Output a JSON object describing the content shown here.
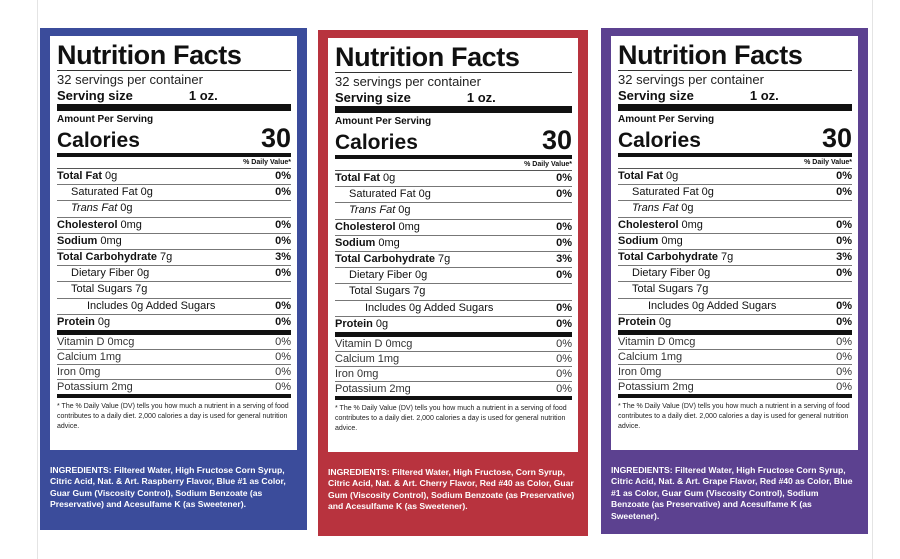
{
  "panels": [
    {
      "color": "#3b4c9b",
      "title": "Nutrition Facts",
      "servings": "32 servings per container",
      "serving_size_label": "Serving size",
      "serving_size": "1 oz.",
      "amount_per_serving": "Amount Per Serving",
      "calories_label": "Calories",
      "calories": "30",
      "daily_value_header": "% Daily Value*",
      "rows": [
        {
          "name": "Total Fat",
          "amount": "0g",
          "dv": "0%"
        },
        {
          "name": "Saturated Fat",
          "amount": "0g",
          "dv": "0%"
        },
        {
          "name": "Trans Fat",
          "amount": "0g"
        },
        {
          "name": "Cholesterol",
          "amount": "0mg",
          "dv": "0%"
        },
        {
          "name": "Sodium",
          "amount": "0mg",
          "dv": "0%"
        },
        {
          "name": "Total Carbohydrate",
          "amount": "7g",
          "dv": "3%"
        },
        {
          "name": "Dietary Fiber",
          "amount": "0g",
          "dv": "0%"
        },
        {
          "name": "Total Sugars",
          "amount": "7g"
        },
        {
          "name": "Includes 0g Added Sugars",
          "dv": "0%"
        },
        {
          "name": "Protein",
          "amount": "0g",
          "dv": "0%"
        },
        {
          "name": "Vitamin D",
          "amount": "0mcg",
          "dv": "0%"
        },
        {
          "name": "Calcium",
          "amount": "1mg",
          "dv": "0%"
        },
        {
          "name": "Iron",
          "amount": "0mg",
          "dv": "0%"
        },
        {
          "name": "Potassium",
          "amount": "2mg",
          "dv": "0%"
        }
      ],
      "footnote": "* The % Daily Value (DV) tells you how much a nutrient in a serving of food contributes to a daily diet. 2,000 calories a day is used for general nutrition advice.",
      "ingredients": "INGREDIENTS: Filtered Water, High Fructose Corn Syrup, Citric Acid, Nat. & Art. Raspberry Flavor, Blue #1 as Color, Guar Gum (Viscosity Control), Sodium Benzoate (as Preservative) and Acesulfame K (as Sweetener)."
    },
    {
      "color": "#b8333e",
      "title": "Nutrition Facts",
      "servings": "32 servings per container",
      "serving_size_label": "Serving size",
      "serving_size": "1 oz.",
      "amount_per_serving": "Amount Per Serving",
      "calories_label": "Calories",
      "calories": "30",
      "daily_value_header": "% Daily Value*",
      "rows": [
        {
          "name": "Total Fat",
          "amount": "0g",
          "dv": "0%"
        },
        {
          "name": "Saturated Fat",
          "amount": "0g",
          "dv": "0%"
        },
        {
          "name": "Trans Fat",
          "amount": "0g"
        },
        {
          "name": "Cholesterol",
          "amount": "0mg",
          "dv": "0%"
        },
        {
          "name": "Sodium",
          "amount": "0mg",
          "dv": "0%"
        },
        {
          "name": "Total Carbohydrate",
          "amount": "7g",
          "dv": "3%"
        },
        {
          "name": "Dietary Fiber",
          "amount": "0g",
          "dv": "0%"
        },
        {
          "name": "Total Sugars",
          "amount": "7g"
        },
        {
          "name": "Includes 0g Added Sugars",
          "dv": "0%"
        },
        {
          "name": "Protein",
          "amount": "0g",
          "dv": "0%"
        },
        {
          "name": "Vitamin D",
          "amount": "0mcg",
          "dv": "0%"
        },
        {
          "name": "Calcium",
          "amount": "1mg",
          "dv": "0%"
        },
        {
          "name": "Iron",
          "amount": "0mg",
          "dv": "0%"
        },
        {
          "name": "Potassium",
          "amount": "2mg",
          "dv": "0%"
        }
      ],
      "footnote": "* The % Daily Value (DV) tells you how much a nutrient in a serving of food contributes to a daily diet. 2,000 calories a day is used for general nutrition advice.",
      "ingredients": "INGREDIENTS: Filtered Water, High Fructose, Corn Syrup, Citric Acid, Nat. & Art. Cherry Flavor, Red #40 as Color, Guar Gum (Viscosity Control), Sodium Benzoate (as Preservative) and Acesulfame K (as Sweetener)."
    },
    {
      "color": "#5c4190",
      "title": "Nutrition Facts",
      "servings": "32 servings per container",
      "serving_size_label": "Serving size",
      "serving_size": "1 oz.",
      "amount_per_serving": "Amount Per Serving",
      "calories_label": "Calories",
      "calories": "30",
      "daily_value_header": "% Daily Value*",
      "rows": [
        {
          "name": "Total Fat",
          "amount": "0g",
          "dv": "0%"
        },
        {
          "name": "Saturated Fat",
          "amount": "0g",
          "dv": "0%"
        },
        {
          "name": "Trans Fat",
          "amount": "0g"
        },
        {
          "name": "Cholesterol",
          "amount": "0mg",
          "dv": "0%"
        },
        {
          "name": "Sodium",
          "amount": "0mg",
          "dv": "0%"
        },
        {
          "name": "Total Carbohydrate",
          "amount": "7g",
          "dv": "3%"
        },
        {
          "name": "Dietary Fiber",
          "amount": "0g",
          "dv": "0%"
        },
        {
          "name": "Total Sugars",
          "amount": "7g"
        },
        {
          "name": "Includes 0g Added Sugars",
          "dv": "0%"
        },
        {
          "name": "Protein",
          "amount": "0g",
          "dv": "0%"
        },
        {
          "name": "Vitamin D",
          "amount": "0mcg",
          "dv": "0%"
        },
        {
          "name": "Calcium",
          "amount": "1mg",
          "dv": "0%"
        },
        {
          "name": "Iron",
          "amount": "0mg",
          "dv": "0%"
        },
        {
          "name": "Potassium",
          "amount": "2mg",
          "dv": "0%"
        }
      ],
      "footnote": "* The % Daily Value (DV) tells you how much a nutrient in a serving of food contributes to a daily diet. 2,000 calories a day is used for general nutrition advice.",
      "ingredients": "INGREDIENTS: Filtered Water, High Fructose Corn Syrup, Citric Acid, Nat. & Art. Grape Flavor, Red #40 as Color, Blue #1 as Color, Guar Gum (Viscosity Control), Sodium Benzoate (as Preservative) and Acesulfame K (as Sweetener)."
    }
  ]
}
